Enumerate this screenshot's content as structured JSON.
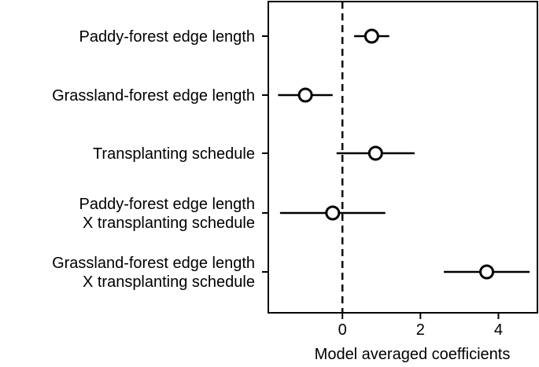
{
  "chart_data": {
    "type": "scatter",
    "title": "",
    "xlabel": "Model averaged coefficients",
    "ylabel": "",
    "xlim": [
      -1.9,
      5.0
    ],
    "xticks": [
      0,
      2,
      4
    ],
    "xtick_labels": [
      "0",
      "2",
      "4"
    ],
    "reference_line_x": 0,
    "grid": false,
    "legend": "none",
    "terms": [
      {
        "label_lines": [
          "Paddy-forest edge length"
        ],
        "estimate": 0.75,
        "lower": 0.3,
        "upper": 1.2
      },
      {
        "label_lines": [
          "Grassland-forest edge length"
        ],
        "estimate": -0.95,
        "lower": -1.65,
        "upper": -0.25
      },
      {
        "label_lines": [
          "Transplanting schedule"
        ],
        "estimate": 0.85,
        "lower": -0.15,
        "upper": 1.85
      },
      {
        "label_lines": [
          "Paddy-forest edge length",
          "X transplanting schedule"
        ],
        "estimate": -0.25,
        "lower": -1.6,
        "upper": 1.1
      },
      {
        "label_lines": [
          "Grassland-forest edge length",
          "X transplanting schedule"
        ],
        "estimate": 3.7,
        "lower": 2.6,
        "upper": 4.8
      }
    ]
  }
}
